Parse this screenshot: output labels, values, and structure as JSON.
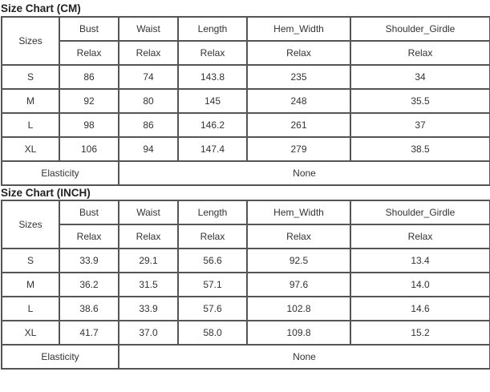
{
  "charts": [
    {
      "title": "Size Chart (CM)",
      "sizes_label": "Sizes",
      "columns": [
        "Bust",
        "Waist",
        "Length",
        "Hem_Width",
        "Shoulder_Girdle"
      ],
      "subheaders": [
        "Relax",
        "Relax",
        "Relax",
        "Relax",
        "Relax"
      ],
      "rows": [
        {
          "size": "S",
          "values": [
            "86",
            "74",
            "143.8",
            "235",
            "34"
          ]
        },
        {
          "size": "M",
          "values": [
            "92",
            "80",
            "145",
            "248",
            "35.5"
          ]
        },
        {
          "size": "L",
          "values": [
            "98",
            "86",
            "146.2",
            "261",
            "37"
          ]
        },
        {
          "size": "XL",
          "values": [
            "106",
            "94",
            "147.4",
            "279",
            "38.5"
          ]
        }
      ],
      "elasticity_label": "Elasticity",
      "elasticity_value": "None"
    },
    {
      "title": "Size Chart (INCH)",
      "sizes_label": "Sizes",
      "columns": [
        "Bust",
        "Waist",
        "Length",
        "Hem_Width",
        "Shoulder_Girdle"
      ],
      "subheaders": [
        "Relax",
        "Relax",
        "Relax",
        "Relax",
        "Relax"
      ],
      "rows": [
        {
          "size": "S",
          "values": [
            "33.9",
            "29.1",
            "56.6",
            "92.5",
            "13.4"
          ]
        },
        {
          "size": "M",
          "values": [
            "36.2",
            "31.5",
            "57.1",
            "97.6",
            "14.0"
          ]
        },
        {
          "size": "L",
          "values": [
            "38.6",
            "33.9",
            "57.6",
            "102.8",
            "14.6"
          ]
        },
        {
          "size": "XL",
          "values": [
            "41.7",
            "37.0",
            "58.0",
            "109.8",
            "15.2"
          ]
        }
      ],
      "elasticity_label": "Elasticity",
      "elasticity_value": "None"
    }
  ]
}
